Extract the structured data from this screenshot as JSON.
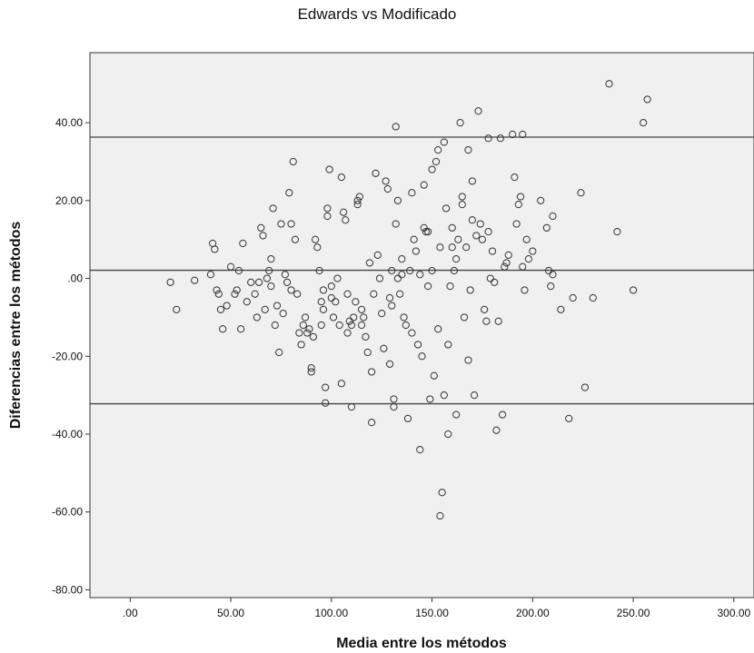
{
  "chart_data": {
    "type": "scatter",
    "title": "Edwards vs Modificado",
    "xlabel": "Media entre los métodos",
    "ylabel": "Diferencias entre los métodos",
    "xlim": [
      -20,
      310
    ],
    "ylim": [
      -82,
      58
    ],
    "x_ticks": [
      {
        "value": 0,
        "label": ".00"
      },
      {
        "value": 50,
        "label": "50.00"
      },
      {
        "value": 100,
        "label": "100.00"
      },
      {
        "value": 150,
        "label": "150.00"
      },
      {
        "value": 200,
        "label": "200.00"
      },
      {
        "value": 250,
        "label": "250.00"
      },
      {
        "value": 300,
        "label": "300.00"
      }
    ],
    "y_ticks": [
      {
        "value": 40,
        "label": "40.00"
      },
      {
        "value": 20,
        "label": "20.00"
      },
      {
        "value": 0,
        "label": ".00"
      },
      {
        "value": -20,
        "label": "-20.00"
      },
      {
        "value": -40,
        "label": "-40.00"
      },
      {
        "value": -60,
        "label": "-60.00"
      },
      {
        "value": -80,
        "label": "-80.00"
      }
    ],
    "reference_lines": [
      36.3,
      2.1,
      -32.2
    ],
    "grid": false,
    "background": "#f0f0f0",
    "marker_color": "#333333",
    "line_color": "#444444",
    "points": [
      [
        20,
        -1
      ],
      [
        23,
        -8
      ],
      [
        32,
        -0.5
      ],
      [
        40,
        1
      ],
      [
        41,
        9
      ],
      [
        42,
        7.5
      ],
      [
        43,
        -3
      ],
      [
        44,
        -4
      ],
      [
        45,
        -8
      ],
      [
        46,
        -13
      ],
      [
        48,
        -7
      ],
      [
        50,
        3
      ],
      [
        52,
        -4
      ],
      [
        53,
        -3
      ],
      [
        54,
        2
      ],
      [
        55,
        -13
      ],
      [
        56,
        9
      ],
      [
        58,
        -6
      ],
      [
        60,
        -1
      ],
      [
        62,
        -4
      ],
      [
        63,
        -10
      ],
      [
        64,
        -1
      ],
      [
        65,
        13
      ],
      [
        66,
        11
      ],
      [
        67,
        -8
      ],
      [
        68,
        0
      ],
      [
        69,
        2
      ],
      [
        70,
        -2
      ],
      [
        70,
        5
      ],
      [
        71,
        18
      ],
      [
        72,
        -12
      ],
      [
        73,
        -7
      ],
      [
        74,
        -19
      ],
      [
        75,
        14
      ],
      [
        76,
        -9
      ],
      [
        77,
        1
      ],
      [
        78,
        -1
      ],
      [
        79,
        22
      ],
      [
        80,
        14
      ],
      [
        80,
        -3
      ],
      [
        81,
        30
      ],
      [
        82,
        10
      ],
      [
        83,
        -4
      ],
      [
        84,
        -14
      ],
      [
        85,
        -17
      ],
      [
        86,
        -12
      ],
      [
        87,
        -10
      ],
      [
        88,
        -14
      ],
      [
        89,
        -13
      ],
      [
        90,
        -23
      ],
      [
        90,
        -24
      ],
      [
        91,
        -15
      ],
      [
        92,
        10
      ],
      [
        93,
        8
      ],
      [
        94,
        2
      ],
      [
        95,
        -6
      ],
      [
        95,
        -12
      ],
      [
        96,
        -3
      ],
      [
        96,
        -8
      ],
      [
        97,
        -32
      ],
      [
        97,
        -28
      ],
      [
        98,
        18
      ],
      [
        98,
        16
      ],
      [
        99,
        28
      ],
      [
        100,
        -2
      ],
      [
        100,
        -5
      ],
      [
        101,
        -10
      ],
      [
        102,
        -6
      ],
      [
        103,
        0
      ],
      [
        104,
        -12
      ],
      [
        105,
        -27
      ],
      [
        105,
        26
      ],
      [
        106,
        17
      ],
      [
        107,
        15
      ],
      [
        108,
        -4
      ],
      [
        108,
        -14
      ],
      [
        109,
        -11
      ],
      [
        110,
        -12
      ],
      [
        110,
        -33
      ],
      [
        111,
        -10
      ],
      [
        112,
        -6
      ],
      [
        113,
        19
      ],
      [
        113,
        20
      ],
      [
        114,
        21
      ],
      [
        115,
        -8
      ],
      [
        115,
        -12
      ],
      [
        116,
        -10
      ],
      [
        117,
        -15
      ],
      [
        118,
        -19
      ],
      [
        119,
        4
      ],
      [
        120,
        -24
      ],
      [
        120,
        -37
      ],
      [
        121,
        -4
      ],
      [
        122,
        27
      ],
      [
        123,
        6
      ],
      [
        124,
        0
      ],
      [
        125,
        -9
      ],
      [
        126,
        -18
      ],
      [
        127,
        25
      ],
      [
        128,
        23
      ],
      [
        129,
        -5
      ],
      [
        129,
        -22
      ],
      [
        130,
        -7
      ],
      [
        130,
        2
      ],
      [
        131,
        -31
      ],
      [
        131,
        -33
      ],
      [
        132,
        14
      ],
      [
        132,
        39
      ],
      [
        133,
        20
      ],
      [
        133,
        0
      ],
      [
        134,
        -4
      ],
      [
        135,
        1
      ],
      [
        135,
        5
      ],
      [
        136,
        -10
      ],
      [
        137,
        -12
      ],
      [
        138,
        -36
      ],
      [
        139,
        2
      ],
      [
        140,
        -14
      ],
      [
        140,
        22
      ],
      [
        141,
        10
      ],
      [
        142,
        7
      ],
      [
        143,
        -17
      ],
      [
        144,
        1
      ],
      [
        144,
        -44
      ],
      [
        145,
        -20
      ],
      [
        146,
        13
      ],
      [
        146,
        24
      ],
      [
        147,
        12
      ],
      [
        148,
        -2
      ],
      [
        148,
        12
      ],
      [
        149,
        -31
      ],
      [
        150,
        28
      ],
      [
        150,
        2
      ],
      [
        151,
        -25
      ],
      [
        152,
        30
      ],
      [
        153,
        33
      ],
      [
        153,
        -13
      ],
      [
        154,
        8
      ],
      [
        154,
        -61
      ],
      [
        155,
        -55
      ],
      [
        156,
        -30
      ],
      [
        156,
        35
      ],
      [
        157,
        18
      ],
      [
        158,
        -17
      ],
      [
        158,
        -40
      ],
      [
        159,
        -2
      ],
      [
        160,
        13
      ],
      [
        160,
        8
      ],
      [
        161,
        2
      ],
      [
        162,
        5
      ],
      [
        162,
        -35
      ],
      [
        163,
        10
      ],
      [
        164,
        40
      ],
      [
        165,
        19
      ],
      [
        165,
        21
      ],
      [
        166,
        -10
      ],
      [
        167,
        8
      ],
      [
        168,
        -21
      ],
      [
        168,
        33
      ],
      [
        169,
        -3
      ],
      [
        170,
        25
      ],
      [
        170,
        15
      ],
      [
        171,
        -30
      ],
      [
        172,
        11
      ],
      [
        173,
        43
      ],
      [
        174,
        14
      ],
      [
        175,
        10
      ],
      [
        176,
        -8
      ],
      [
        177,
        -11
      ],
      [
        178,
        36
      ],
      [
        178,
        12
      ],
      [
        179,
        0
      ],
      [
        180,
        7
      ],
      [
        181,
        -1
      ],
      [
        182,
        -39
      ],
      [
        183,
        -11
      ],
      [
        184,
        36
      ],
      [
        185,
        -35
      ],
      [
        186,
        3
      ],
      [
        187,
        4
      ],
      [
        188,
        6
      ],
      [
        190,
        37
      ],
      [
        191,
        26
      ],
      [
        192,
        14
      ],
      [
        193,
        19
      ],
      [
        194,
        21
      ],
      [
        195,
        37
      ],
      [
        195,
        3
      ],
      [
        196,
        -3
      ],
      [
        197,
        10
      ],
      [
        198,
        5
      ],
      [
        200,
        7
      ],
      [
        204,
        20
      ],
      [
        207,
        13
      ],
      [
        208,
        2
      ],
      [
        209,
        -2
      ],
      [
        210,
        16
      ],
      [
        210,
        1
      ],
      [
        214,
        -8
      ],
      [
        218,
        -36
      ],
      [
        220,
        -5
      ],
      [
        224,
        22
      ],
      [
        226,
        -28
      ],
      [
        230,
        -5
      ],
      [
        238,
        50
      ],
      [
        242,
        12
      ],
      [
        250,
        -3
      ],
      [
        255,
        40
      ],
      [
        257,
        46
      ]
    ]
  }
}
